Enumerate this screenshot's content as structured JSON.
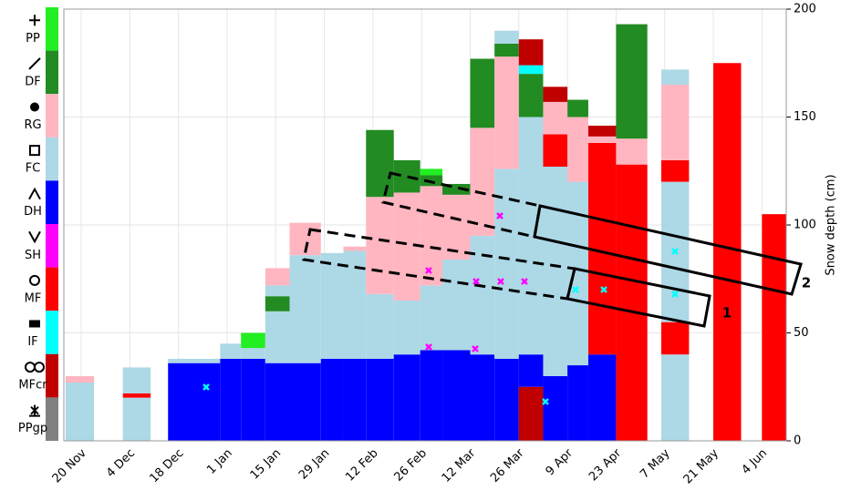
{
  "chart_data": {
    "type": "snow-profile",
    "y_label": "Snow depth (cm)",
    "ylim": [
      0,
      200
    ],
    "yticks": [
      0,
      50,
      100,
      150,
      200
    ],
    "xlim": [
      -5,
      203
    ],
    "xticks": [
      {
        "value": 0,
        "label": "20 Nov"
      },
      {
        "value": 14,
        "label": "4 Dec"
      },
      {
        "value": 28,
        "label": "18 Dec"
      },
      {
        "value": 42,
        "label": "1 Jan"
      },
      {
        "value": 56,
        "label": "15 Jan"
      },
      {
        "value": 70,
        "label": "29 Jan"
      },
      {
        "value": 84,
        "label": "12 Feb"
      },
      {
        "value": 98,
        "label": "26 Feb"
      },
      {
        "value": 112,
        "label": "12 Mar"
      },
      {
        "value": 126,
        "label": "26 Mar"
      },
      {
        "value": 140,
        "label": "9 Apr"
      },
      {
        "value": 154,
        "label": "23 Apr"
      },
      {
        "value": 168,
        "label": "7 May"
      },
      {
        "value": 182,
        "label": "21 May"
      },
      {
        "value": 196,
        "label": "4 Jun"
      }
    ],
    "grain_types": [
      {
        "name": "PP",
        "color": "#22ee22"
      },
      {
        "name": "DF",
        "color": "#228b22"
      },
      {
        "name": "RG",
        "color": "#ffb6c1"
      },
      {
        "name": "FC",
        "color": "#add8e6"
      },
      {
        "name": "DH",
        "color": "#0000ff"
      },
      {
        "name": "SH",
        "color": "#ff00ff"
      },
      {
        "name": "MF",
        "color": "#ff0000"
      },
      {
        "name": "IF",
        "color": "#00ffff"
      },
      {
        "name": "MFcr",
        "color": "#c00000"
      },
      {
        "name": "PPgp",
        "color": "#808080"
      }
    ],
    "profiles": [
      {
        "x": [
          -4.5,
          3.7
        ],
        "layers": [
          {
            "grain": "FC",
            "thickness": 27
          },
          {
            "grain": "RG",
            "thickness": 3
          }
        ]
      },
      {
        "x": [
          12,
          20
        ],
        "layers": [
          {
            "grain": "FC",
            "thickness": 20
          },
          {
            "grain": "MF",
            "thickness": 2
          },
          {
            "grain": "FC",
            "thickness": 12
          }
        ]
      },
      {
        "x": [
          25,
          40
        ],
        "layers": [
          {
            "grain": "DH",
            "thickness": 36
          },
          {
            "grain": "FC",
            "thickness": 2
          }
        ]
      },
      {
        "x": [
          40,
          46
        ],
        "layers": [
          {
            "grain": "DH",
            "thickness": 38
          },
          {
            "grain": "FC",
            "thickness": 7
          }
        ]
      },
      {
        "x": [
          46,
          53
        ],
        "layers": [
          {
            "grain": "DH",
            "thickness": 38
          },
          {
            "grain": "FC",
            "thickness": 5
          },
          {
            "grain": "PP",
            "thickness": 7
          }
        ]
      },
      {
        "x": [
          53,
          60
        ],
        "layers": [
          {
            "grain": "DH",
            "thickness": 36
          },
          {
            "grain": "FC",
            "thickness": 24
          },
          {
            "grain": "DF",
            "thickness": 7
          },
          {
            "grain": "FC",
            "thickness": 5
          },
          {
            "grain": "RG",
            "thickness": 8
          }
        ]
      },
      {
        "x": [
          60,
          69
        ],
        "layers": [
          {
            "grain": "DH",
            "thickness": 36
          },
          {
            "grain": "FC",
            "thickness": 50
          },
          {
            "grain": "RG",
            "thickness": 15
          }
        ]
      },
      {
        "x": [
          69,
          75.5
        ],
        "layers": [
          {
            "grain": "DH",
            "thickness": 38
          },
          {
            "grain": "FC",
            "thickness": 49
          }
        ]
      },
      {
        "x": [
          75.5,
          82
        ],
        "layers": [
          {
            "grain": "DH",
            "thickness": 38
          },
          {
            "grain": "FC",
            "thickness": 50
          },
          {
            "grain": "RG",
            "thickness": 2
          }
        ]
      },
      {
        "x": [
          82,
          90
        ],
        "layers": [
          {
            "grain": "DH",
            "thickness": 38
          },
          {
            "grain": "FC",
            "thickness": 30
          },
          {
            "grain": "RG",
            "thickness": 45
          },
          {
            "grain": "DF",
            "thickness": 31
          }
        ]
      },
      {
        "x": [
          90,
          97.6
        ],
        "layers": [
          {
            "grain": "DH",
            "thickness": 40
          },
          {
            "grain": "FC",
            "thickness": 25
          },
          {
            "grain": "RG",
            "thickness": 50
          },
          {
            "grain": "DF",
            "thickness": 15
          }
        ]
      },
      {
        "x": [
          97.6,
          104
        ],
        "layers": [
          {
            "grain": "DH",
            "thickness": 42
          },
          {
            "grain": "FC",
            "thickness": 30
          },
          {
            "grain": "RG",
            "thickness": 46
          },
          {
            "grain": "DF",
            "thickness": 5
          },
          {
            "grain": "PP",
            "thickness": 3
          }
        ]
      },
      {
        "x": [
          104,
          112
        ],
        "layers": [
          {
            "grain": "DH",
            "thickness": 42
          },
          {
            "grain": "FC",
            "thickness": 42
          },
          {
            "grain": "RG",
            "thickness": 30
          },
          {
            "grain": "DF",
            "thickness": 5
          }
        ]
      },
      {
        "x": [
          112,
          119
        ],
        "layers": [
          {
            "grain": "DH",
            "thickness": 40
          },
          {
            "grain": "FC",
            "thickness": 55
          },
          {
            "grain": "RG",
            "thickness": 50
          },
          {
            "grain": "DF",
            "thickness": 32
          }
        ]
      },
      {
        "x": [
          119,
          126
        ],
        "layers": [
          {
            "grain": "DH",
            "thickness": 38
          },
          {
            "grain": "FC",
            "thickness": 88
          },
          {
            "grain": "RG",
            "thickness": 52
          },
          {
            "grain": "DF",
            "thickness": 6
          },
          {
            "grain": "FC",
            "thickness": 6
          }
        ]
      },
      {
        "x": [
          126,
          133
        ],
        "layers": [
          {
            "grain": "MFcr",
            "thickness": 25
          },
          {
            "grain": "DH",
            "thickness": 15
          },
          {
            "grain": "FC",
            "thickness": 110
          },
          {
            "grain": "DF",
            "thickness": 20
          },
          {
            "grain": "IF",
            "thickness": 4
          },
          {
            "grain": "MFcr",
            "thickness": 12
          }
        ]
      },
      {
        "x": [
          133,
          140
        ],
        "layers": [
          {
            "grain": "DH",
            "thickness": 30
          },
          {
            "grain": "FC",
            "thickness": 97
          },
          {
            "grain": "MF",
            "thickness": 15
          },
          {
            "grain": "RG",
            "thickness": 15
          },
          {
            "grain": "MFcr",
            "thickness": 7
          }
        ]
      },
      {
        "x": [
          140,
          146
        ],
        "layers": [
          {
            "grain": "DH",
            "thickness": 35
          },
          {
            "grain": "FC",
            "thickness": 85
          },
          {
            "grain": "RG",
            "thickness": 30
          },
          {
            "grain": "DF",
            "thickness": 8
          }
        ]
      },
      {
        "x": [
          146,
          154
        ],
        "layers": [
          {
            "grain": "DH",
            "thickness": 40
          },
          {
            "grain": "MF",
            "thickness": 98
          },
          {
            "grain": "RG",
            "thickness": 3
          },
          {
            "grain": "MFcr",
            "thickness": 5
          }
        ]
      },
      {
        "x": [
          154,
          163
        ],
        "layers": [
          {
            "grain": "MF",
            "thickness": 128
          },
          {
            "grain": "RG",
            "thickness": 12
          },
          {
            "grain": "DF",
            "thickness": 53
          }
        ]
      },
      {
        "x": [
          167,
          175
        ],
        "layers": [
          {
            "grain": "FC",
            "thickness": 40
          },
          {
            "grain": "MF",
            "thickness": 15
          },
          {
            "grain": "FC",
            "thickness": 65
          },
          {
            "grain": "MF",
            "thickness": 10
          },
          {
            "grain": "RG",
            "thickness": 35
          },
          {
            "grain": "FC",
            "thickness": 7
          }
        ]
      },
      {
        "x": [
          182,
          190
        ],
        "layers": [
          {
            "grain": "MF",
            "thickness": 175
          }
        ]
      },
      {
        "x": [
          196,
          203
        ],
        "layers": [
          {
            "grain": "MF",
            "thickness": 105
          }
        ]
      }
    ],
    "annotations": [
      {
        "text": "1"
      },
      {
        "text": "2"
      }
    ]
  }
}
